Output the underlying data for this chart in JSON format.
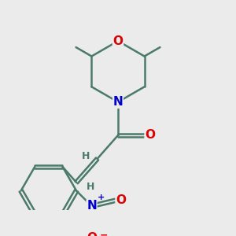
{
  "bg_color": "#ebebeb",
  "bond_color": "#4a7a6a",
  "bond_width": 1.8,
  "atom_colors": {
    "O": "#dd0000",
    "N": "#0000cc",
    "C": "#4a7a6a",
    "H": "#4a7a6a"
  },
  "font_size_atom": 11,
  "font_size_h": 9,
  "font_size_charge": 7
}
